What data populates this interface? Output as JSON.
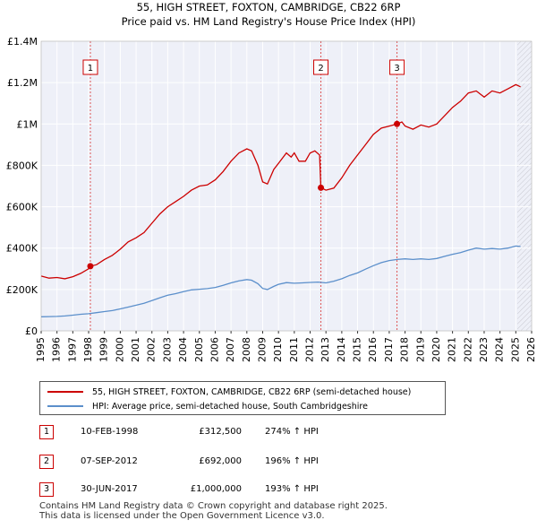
{
  "chart_data": {
    "type": "line",
    "title": "55, HIGH STREET, FOXTON, CAMBRIDGE, CB22 6RP",
    "subtitle": "Price paid vs. HM Land Registry's House Price Index (HPI)",
    "xlim": [
      1995,
      2026
    ],
    "ylim": [
      0,
      1400000
    ],
    "x_ticks": [
      "1995",
      "1996",
      "1997",
      "1998",
      "1999",
      "2000",
      "2001",
      "2002",
      "2003",
      "2004",
      "2005",
      "2006",
      "2007",
      "2008",
      "2009",
      "2010",
      "2011",
      "2012",
      "2013",
      "2014",
      "2015",
      "2016",
      "2017",
      "2018",
      "2019",
      "2020",
      "2021",
      "2022",
      "2023",
      "2024",
      "2025",
      "2026"
    ],
    "y_ticks": [
      {
        "value": 0,
        "label": "£0"
      },
      {
        "value": 200000,
        "label": "£200K"
      },
      {
        "value": 400000,
        "label": "£400K"
      },
      {
        "value": 600000,
        "label": "£600K"
      },
      {
        "value": 800000,
        "label": "£800K"
      },
      {
        "value": 1000000,
        "label": "£1M"
      },
      {
        "value": 1200000,
        "label": "£1.2M"
      },
      {
        "value": 1400000,
        "label": "£1.4M"
      }
    ],
    "grid": true,
    "forecast_start": 2025.1,
    "series": [
      {
        "name": "55, HIGH STREET, FOXTON, CAMBRIDGE, CB22 6RP (semi-detached house)",
        "color": "#cc0000",
        "points": [
          [
            1995.0,
            265000
          ],
          [
            1995.5,
            255000
          ],
          [
            1996.0,
            258000
          ],
          [
            1996.5,
            252000
          ],
          [
            1997.0,
            262000
          ],
          [
            1997.5,
            278000
          ],
          [
            1998.0,
            300000
          ],
          [
            1998.11,
            312500
          ],
          [
            1998.5,
            320000
          ],
          [
            1999.0,
            345000
          ],
          [
            1999.5,
            365000
          ],
          [
            2000.0,
            395000
          ],
          [
            2000.5,
            430000
          ],
          [
            2001.0,
            450000
          ],
          [
            2001.5,
            475000
          ],
          [
            2002.0,
            520000
          ],
          [
            2002.5,
            565000
          ],
          [
            2003.0,
            600000
          ],
          [
            2003.5,
            625000
          ],
          [
            2004.0,
            650000
          ],
          [
            2004.5,
            680000
          ],
          [
            2005.0,
            700000
          ],
          [
            2005.5,
            705000
          ],
          [
            2006.0,
            730000
          ],
          [
            2006.5,
            770000
          ],
          [
            2007.0,
            820000
          ],
          [
            2007.5,
            860000
          ],
          [
            2008.0,
            880000
          ],
          [
            2008.3,
            870000
          ],
          [
            2008.7,
            800000
          ],
          [
            2009.0,
            720000
          ],
          [
            2009.3,
            710000
          ],
          [
            2009.7,
            780000
          ],
          [
            2010.0,
            810000
          ],
          [
            2010.5,
            860000
          ],
          [
            2010.8,
            840000
          ],
          [
            2011.0,
            860000
          ],
          [
            2011.3,
            820000
          ],
          [
            2011.7,
            820000
          ],
          [
            2012.0,
            860000
          ],
          [
            2012.3,
            870000
          ],
          [
            2012.6,
            850000
          ],
          [
            2012.68,
            692000
          ],
          [
            2013.0,
            680000
          ],
          [
            2013.5,
            690000
          ],
          [
            2014.0,
            740000
          ],
          [
            2014.5,
            800000
          ],
          [
            2015.0,
            850000
          ],
          [
            2015.5,
            900000
          ],
          [
            2016.0,
            950000
          ],
          [
            2016.5,
            980000
          ],
          [
            2017.0,
            990000
          ],
          [
            2017.49,
            1000000
          ],
          [
            2017.8,
            1010000
          ],
          [
            2018.0,
            990000
          ],
          [
            2018.5,
            975000
          ],
          [
            2019.0,
            995000
          ],
          [
            2019.5,
            985000
          ],
          [
            2020.0,
            1000000
          ],
          [
            2020.5,
            1040000
          ],
          [
            2021.0,
            1080000
          ],
          [
            2021.5,
            1110000
          ],
          [
            2022.0,
            1150000
          ],
          [
            2022.5,
            1160000
          ],
          [
            2023.0,
            1130000
          ],
          [
            2023.5,
            1160000
          ],
          [
            2024.0,
            1150000
          ],
          [
            2024.5,
            1170000
          ],
          [
            2025.0,
            1190000
          ],
          [
            2025.3,
            1180000
          ]
        ]
      },
      {
        "name": "HPI: Average price, semi-detached house, South Cambridgeshire",
        "color": "#5b8fcb",
        "points": [
          [
            1995.0,
            68000
          ],
          [
            1995.5,
            69000
          ],
          [
            1996.0,
            70000
          ],
          [
            1996.5,
            72000
          ],
          [
            1997.0,
            76000
          ],
          [
            1997.5,
            80000
          ],
          [
            1998.0,
            83000
          ],
          [
            1998.5,
            88000
          ],
          [
            1999.0,
            93000
          ],
          [
            1999.5,
            98000
          ],
          [
            2000.0,
            106000
          ],
          [
            2000.5,
            115000
          ],
          [
            2001.0,
            124000
          ],
          [
            2001.5,
            133000
          ],
          [
            2002.0,
            146000
          ],
          [
            2002.5,
            160000
          ],
          [
            2003.0,
            172000
          ],
          [
            2003.5,
            180000
          ],
          [
            2004.0,
            190000
          ],
          [
            2004.5,
            198000
          ],
          [
            2005.0,
            201000
          ],
          [
            2005.5,
            204000
          ],
          [
            2006.0,
            210000
          ],
          [
            2006.5,
            220000
          ],
          [
            2007.0,
            232000
          ],
          [
            2007.5,
            242000
          ],
          [
            2008.0,
            248000
          ],
          [
            2008.3,
            245000
          ],
          [
            2008.7,
            228000
          ],
          [
            2009.0,
            205000
          ],
          [
            2009.3,
            200000
          ],
          [
            2009.7,
            215000
          ],
          [
            2010.0,
            225000
          ],
          [
            2010.5,
            233000
          ],
          [
            2011.0,
            230000
          ],
          [
            2011.5,
            232000
          ],
          [
            2012.0,
            234000
          ],
          [
            2012.5,
            236000
          ],
          [
            2013.0,
            232000
          ],
          [
            2013.5,
            240000
          ],
          [
            2014.0,
            252000
          ],
          [
            2014.5,
            268000
          ],
          [
            2015.0,
            280000
          ],
          [
            2015.5,
            298000
          ],
          [
            2016.0,
            315000
          ],
          [
            2016.5,
            330000
          ],
          [
            2017.0,
            340000
          ],
          [
            2017.5,
            345000
          ],
          [
            2018.0,
            348000
          ],
          [
            2018.5,
            345000
          ],
          [
            2019.0,
            348000
          ],
          [
            2019.5,
            345000
          ],
          [
            2020.0,
            350000
          ],
          [
            2020.5,
            360000
          ],
          [
            2021.0,
            370000
          ],
          [
            2021.5,
            378000
          ],
          [
            2022.0,
            390000
          ],
          [
            2022.5,
            400000
          ],
          [
            2023.0,
            395000
          ],
          [
            2023.5,
            398000
          ],
          [
            2024.0,
            395000
          ],
          [
            2024.5,
            400000
          ],
          [
            2025.0,
            410000
          ],
          [
            2025.3,
            408000
          ]
        ]
      }
    ],
    "sales": [
      {
        "label": "1",
        "x": 1998.11,
        "price": 312500
      },
      {
        "label": "2",
        "x": 2012.68,
        "price": 692000
      },
      {
        "label": "3",
        "x": 2017.49,
        "price": 1000000
      }
    ]
  },
  "legend": {
    "property": "55, HIGH STREET, FOXTON, CAMBRIDGE, CB22 6RP (semi-detached house)",
    "hpi": "HPI: Average price, semi-detached house, South Cambridgeshire"
  },
  "transactions": [
    {
      "num": "1",
      "date": "10-FEB-1998",
      "price": "£312,500",
      "hpi": "274% ↑ HPI"
    },
    {
      "num": "2",
      "date": "07-SEP-2012",
      "price": "£692,000",
      "hpi": "196% ↑ HPI"
    },
    {
      "num": "3",
      "date": "30-JUN-2017",
      "price": "£1,000,000",
      "hpi": "193% ↑ HPI"
    }
  ],
  "footer": {
    "line1": "Contains HM Land Registry data © Crown copyright and database right 2025.",
    "line2": "This data is licensed under the Open Government Licence v3.0."
  },
  "colors": {
    "property": "#cc0000",
    "hpi": "#5b8fcb",
    "grid": "#ffffff",
    "plot_bg": "#eef0f8"
  }
}
